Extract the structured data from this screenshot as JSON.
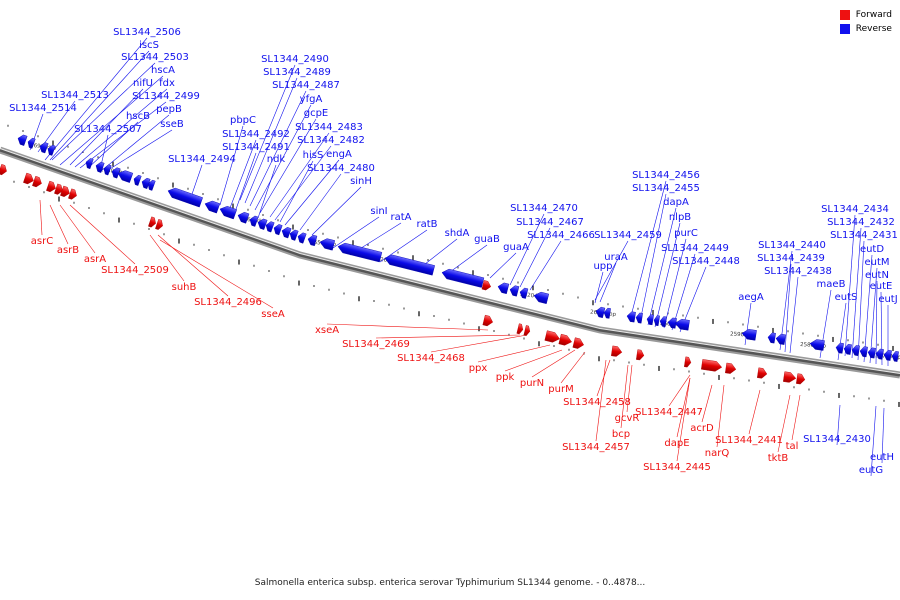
{
  "legend": {
    "forward": {
      "label": "Forward",
      "color": "#ee1111"
    },
    "reverse": {
      "label": "Reverse",
      "color": "#1111ee"
    }
  },
  "caption": "Salmonella enterica subsp. enterica serovar Typhimurium SL1344 genome. - 0..4878...",
  "ticks": [
    "2690 kbp",
    "2680 kbp",
    "2670 kbp",
    "2660 kbp",
    "2650 kbp",
    "2640 kbp",
    "2630 kbp",
    "2620 kbp",
    "2610 kbp",
    "2600 kbp",
    "2590 kbp",
    "2580 kbp",
    "2570 kbp"
  ],
  "reverse_labels": [
    "SL1344_2506",
    "iscS",
    "SL1344_2503",
    "hscA",
    "nifU",
    "fdx",
    "SL1344_2499",
    "SL1344_2513",
    "pepB",
    "SL1344_2514",
    "hscB",
    "sseB",
    "SL1344_2507",
    "SL1344_2490",
    "SL1344_2489",
    "SL1344_2487",
    "yfgA",
    "gcpE",
    "SL1344_2483",
    "SL1344_2482",
    "engA",
    "pbpC",
    "SL1344_2492",
    "SL1344_2491",
    "ndk",
    "hisS",
    "SL1344_2480",
    "sinH",
    "SL1344_2494",
    "sinI",
    "ratA",
    "ratB",
    "shdA",
    "guaB",
    "guaA",
    "SL1344_2470",
    "SL1344_2467",
    "SL1344_2466",
    "SL1344_2459",
    "uraA",
    "upp",
    "SL1344_2456",
    "SL1344_2455",
    "dapA",
    "nlpB",
    "purC",
    "SL1344_2449",
    "SL1344_2448",
    "aegA",
    "SL1344_2440",
    "SL1344_2439",
    "SL1344_2438",
    "maeB",
    "eutS",
    "SL1344_2434",
    "SL1344_2432",
    "SL1344_2431",
    "eutD",
    "eutM",
    "eutN",
    "eutE",
    "eutJ",
    "SL1344_2430",
    "eutH",
    "eutG"
  ],
  "forward_labels": [
    "asrC",
    "asrB",
    "asrA",
    "SL1344_2509",
    "suhB",
    "SL1344_2496",
    "sseA",
    "xseA",
    "SL1344_2469",
    "SL1344_2468",
    "ppx",
    "ppk",
    "purN",
    "purM",
    "SL1344_2458",
    "gcvR",
    "bcp",
    "SL1344_2457",
    "SL1344_2447",
    "dapE",
    "SL1344_2445",
    "acrD",
    "narQ",
    "SL1344_2441",
    "tal",
    "tktB"
  ]
}
